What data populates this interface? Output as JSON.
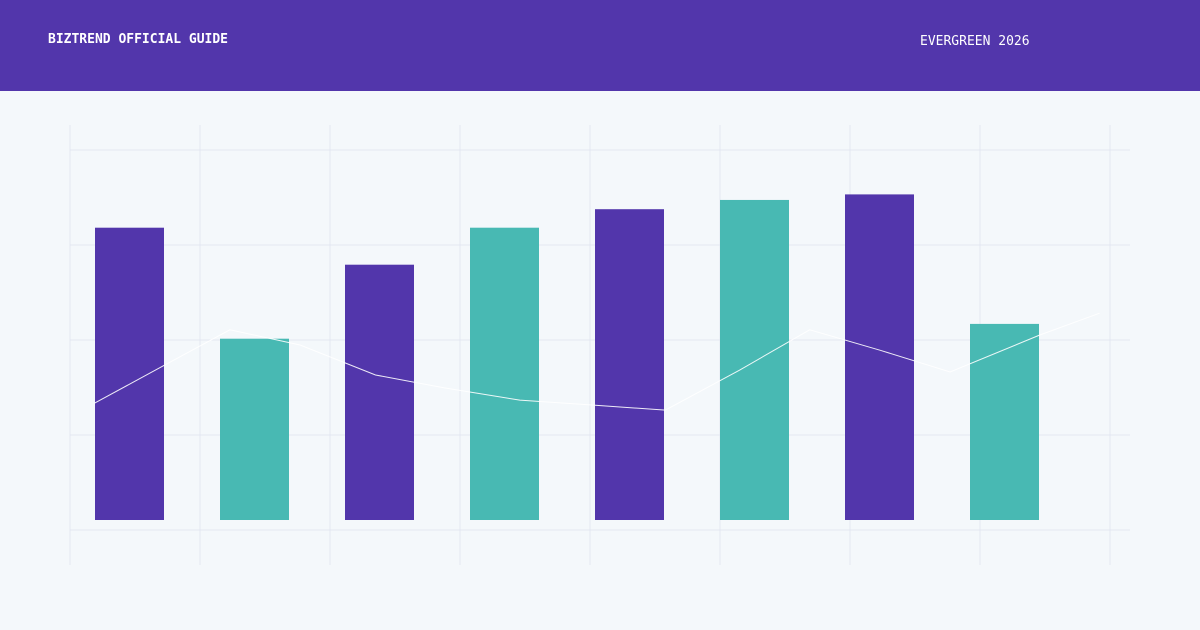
{
  "header": {
    "title": "BIZTREND OFFICIAL GUIDE",
    "tag": "EVERGREEN 2026"
  },
  "chart_data": {
    "type": "bar",
    "categories": [
      null,
      null,
      null,
      null,
      null,
      null,
      null,
      null
    ],
    "values": [
      79,
      49,
      69,
      79,
      84,
      86.5,
      88,
      53
    ],
    "colors": [
      "#5236ab",
      "#48b9b3",
      "#5236ab",
      "#48b9b3",
      "#5236ab",
      "#48b9b3",
      "#5236ab",
      "#48b9b3"
    ],
    "ylim": [
      0,
      100
    ],
    "line": {
      "color": "#ffffff",
      "x": [
        0.19,
        0.73,
        1.23,
        1.77,
        2.35,
        2.88,
        3.46,
        4.0,
        4.58,
        5.15,
        5.69,
        6.23,
        6.77,
        7.46,
        7.92
      ],
      "values": [
        31.6,
        41.9,
        51.4,
        47.3,
        39.2,
        35.7,
        32.4,
        31.1,
        29.7,
        40.5,
        51.4,
        45.9,
        40,
        50,
        55.9
      ]
    },
    "xlim": [
      0,
      8
    ],
    "grid": true
  }
}
